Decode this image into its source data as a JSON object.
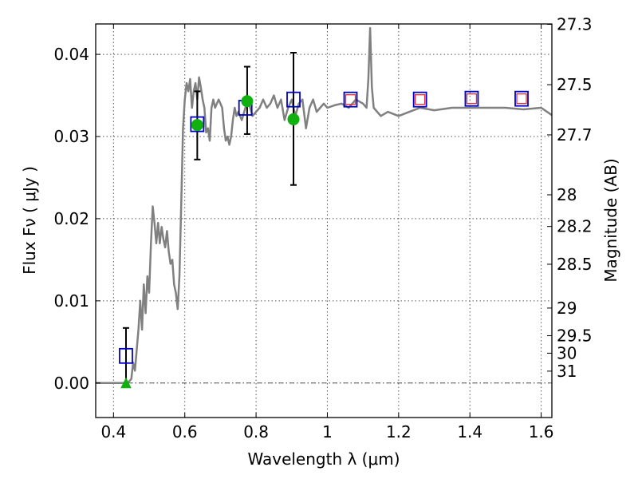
{
  "chart_data": {
    "type": "line",
    "xlabel": "Wavelength  λ (μm)",
    "ylabel_left": "Flux  Fν  ( μJy )",
    "ylabel_right": "Magnitude (AB)",
    "xlim": [
      0.35,
      1.63
    ],
    "ylim": [
      -0.0042,
      0.0437
    ],
    "grid": true,
    "x_ticks": [
      "0.4",
      "0.6",
      "0.8",
      "1",
      "1.2",
      "1.4",
      "1.6"
    ],
    "y_ticks": [
      "0.00",
      "0.01",
      "0.02",
      "0.03",
      "0.04"
    ],
    "right_ticks": [
      {
        "label": "27.3",
        "mag": 27.3
      },
      {
        "label": "27.5",
        "mag": 27.5
      },
      {
        "label": "27.7",
        "mag": 27.7
      },
      {
        "label": "28",
        "mag": 28.0
      },
      {
        "label": "28.2",
        "mag": 28.2
      },
      {
        "label": "28.5",
        "mag": 28.5
      },
      {
        "label": "29",
        "mag": 29.0
      },
      {
        "label": "29.5",
        "mag": 29.5
      },
      {
        "label": "30",
        "mag": 30.0
      },
      {
        "label": "31",
        "mag": 31.0
      }
    ],
    "colors": {
      "spectrum": "#808080",
      "model_box": "#0000cc",
      "inner_box": "#e03030",
      "observed": "#10b010",
      "zero_line": "#555555"
    },
    "spectrum": {
      "x": [
        0.35,
        0.42,
        0.43,
        0.44,
        0.45,
        0.455,
        0.46,
        0.465,
        0.47,
        0.475,
        0.48,
        0.485,
        0.49,
        0.495,
        0.5,
        0.505,
        0.51,
        0.515,
        0.52,
        0.525,
        0.53,
        0.535,
        0.54,
        0.545,
        0.55,
        0.555,
        0.56,
        0.565,
        0.57,
        0.575,
        0.58,
        0.585,
        0.59,
        0.595,
        0.6,
        0.605,
        0.61,
        0.615,
        0.62,
        0.625,
        0.63,
        0.635,
        0.64,
        0.645,
        0.65,
        0.655,
        0.66,
        0.665,
        0.67,
        0.675,
        0.68,
        0.685,
        0.69,
        0.695,
        0.7,
        0.705,
        0.71,
        0.715,
        0.72,
        0.725,
        0.73,
        0.735,
        0.74,
        0.745,
        0.75,
        0.76,
        0.77,
        0.78,
        0.79,
        0.8,
        0.81,
        0.82,
        0.83,
        0.84,
        0.85,
        0.86,
        0.87,
        0.88,
        0.89,
        0.9,
        0.91,
        0.92,
        0.93,
        0.94,
        0.95,
        0.96,
        0.97,
        0.98,
        0.99,
        1.0,
        1.02,
        1.04,
        1.06,
        1.08,
        1.1,
        1.11,
        1.115,
        1.12,
        1.125,
        1.13,
        1.15,
        1.17,
        1.2,
        1.23,
        1.26,
        1.3,
        1.35,
        1.4,
        1.45,
        1.5,
        1.55,
        1.6,
        1.63
      ],
      "y": [
        0.0,
        0.0,
        0.0,
        0.0,
        0.0005,
        0.0025,
        0.0015,
        0.004,
        0.0065,
        0.01,
        0.0065,
        0.012,
        0.0085,
        0.013,
        0.011,
        0.017,
        0.0215,
        0.0195,
        0.017,
        0.0195,
        0.017,
        0.019,
        0.0175,
        0.0165,
        0.0185,
        0.016,
        0.0145,
        0.015,
        0.012,
        0.011,
        0.009,
        0.013,
        0.022,
        0.031,
        0.0345,
        0.0365,
        0.0355,
        0.037,
        0.0335,
        0.0355,
        0.0365,
        0.0345,
        0.0372,
        0.036,
        0.0345,
        0.0335,
        0.0305,
        0.031,
        0.0295,
        0.0335,
        0.0345,
        0.0335,
        0.034,
        0.0345,
        0.034,
        0.0335,
        0.031,
        0.0295,
        0.03,
        0.029,
        0.03,
        0.032,
        0.0335,
        0.0325,
        0.033,
        0.032,
        0.0335,
        0.034,
        0.0325,
        0.033,
        0.0335,
        0.0345,
        0.0335,
        0.034,
        0.035,
        0.0335,
        0.0345,
        0.032,
        0.0335,
        0.0345,
        0.0325,
        0.034,
        0.0345,
        0.031,
        0.0335,
        0.0345,
        0.033,
        0.0335,
        0.034,
        0.0335,
        0.0338,
        0.034,
        0.0335,
        0.0345,
        0.034,
        0.0335,
        0.037,
        0.0432,
        0.036,
        0.0335,
        0.0325,
        0.033,
        0.0325,
        0.033,
        0.0335,
        0.0332,
        0.0335,
        0.0335,
        0.0335,
        0.0335,
        0.0333,
        0.0335,
        0.0326
      ]
    },
    "model_points": {
      "x": [
        0.435,
        0.635,
        0.77,
        0.905,
        1.065,
        1.26,
        1.405,
        1.545
      ],
      "y": [
        0.0033,
        0.0315,
        0.0335,
        0.0345,
        0.0345,
        0.0345,
        0.0346,
        0.0346
      ]
    },
    "observed_points": {
      "x": [
        0.635,
        0.775,
        0.905
      ],
      "y": [
        0.0314,
        0.0343,
        0.0321
      ],
      "err_low": [
        0.0272,
        0.0303,
        0.0241
      ],
      "err_high": [
        0.0355,
        0.0385,
        0.0402
      ]
    },
    "upper_limit": {
      "x": 0.435,
      "y": 0.0,
      "err_high": 0.0067
    }
  }
}
